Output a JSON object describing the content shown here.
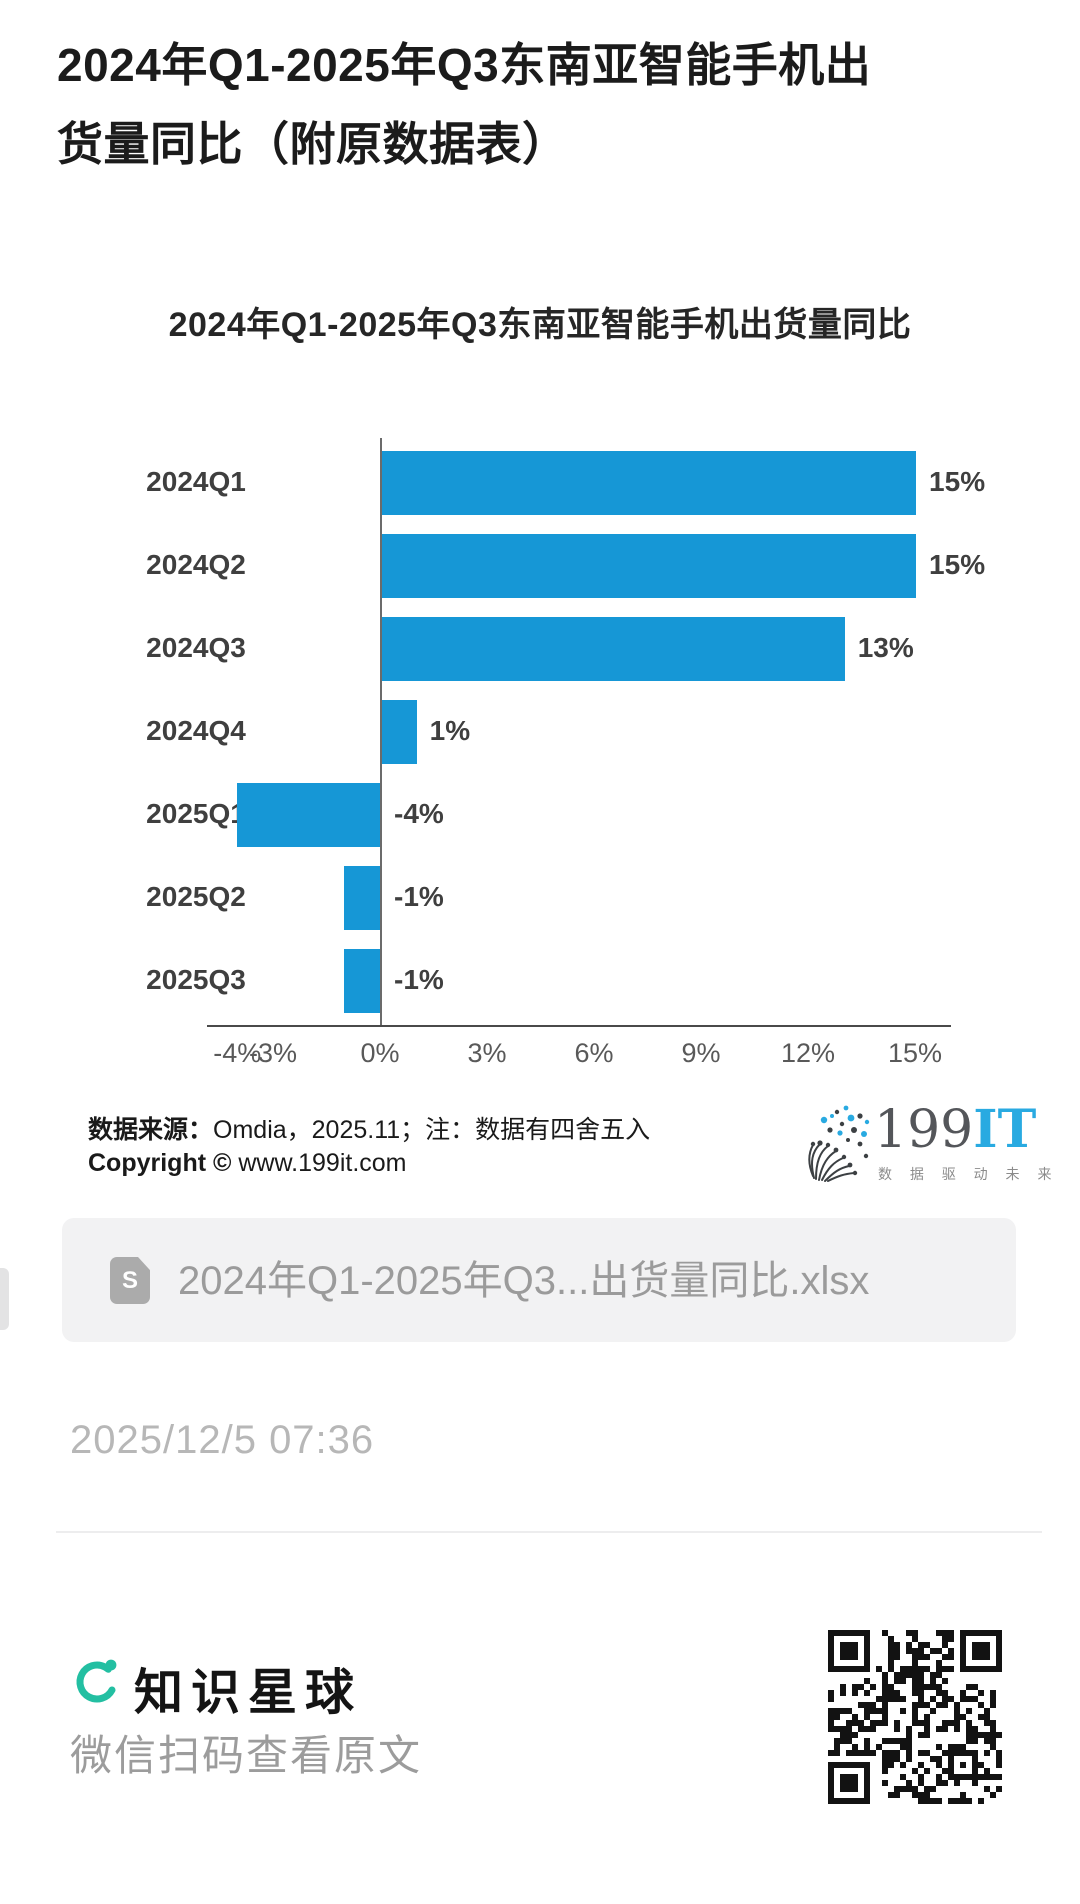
{
  "page": {
    "title": "2024年Q1-2025年Q3东南亚智能手机出货量同比（附原数据表）",
    "timestamp": "2025/12/5 07:36"
  },
  "chart_data": {
    "type": "bar",
    "orientation": "horizontal",
    "title": "2024年Q1-2025年Q3东南亚智能手机出货量同比",
    "categories": [
      "2024Q1",
      "2024Q2",
      "2024Q3",
      "2024Q4",
      "2025Q1",
      "2025Q2",
      "2025Q3"
    ],
    "values": [
      15,
      15,
      13,
      1,
      -4,
      -1,
      -1
    ],
    "value_labels": [
      "15%",
      "15%",
      "13%",
      "1%",
      "-4%",
      "-1%",
      "-1%"
    ],
    "unit": "%",
    "xlim": [
      -4.85,
      16
    ],
    "x_ticks": [
      -4,
      -3,
      0,
      3,
      6,
      9,
      12,
      15
    ],
    "x_tick_labels": [
      "-4%",
      "-3%",
      "0%",
      "3%",
      "6%",
      "9%",
      "12%",
      "15%"
    ],
    "bar_color": "#1697d6",
    "grid": false,
    "legend": null
  },
  "source": {
    "label_bold": "数据来源：",
    "label_rest": "Omdia，2025.11；注：数据有四舍五入",
    "copyright_bold": "Copyright ©",
    "copyright_rest": "www.199it.com"
  },
  "logo199it": {
    "name_dark": "199",
    "name_blue": "IT",
    "tagline": "数 据 驱 动 未 来",
    "blue": "#29aae1"
  },
  "attachment": {
    "filename": "2024年Q1-2025年Q3...出货量同比.xlsx",
    "icon_letter": "S"
  },
  "footer": {
    "brand": "知识星球",
    "subtitle": "微信扫码查看原文",
    "brand_color": "#23bfa2"
  }
}
